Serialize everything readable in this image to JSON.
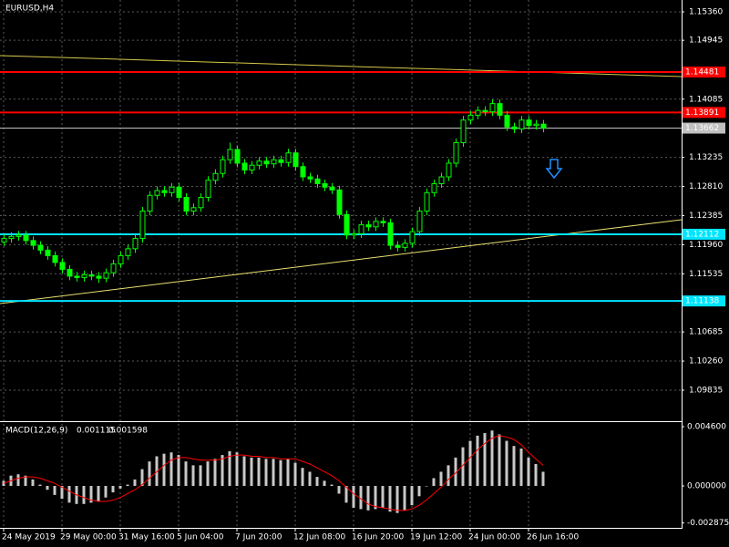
{
  "chart_data": {
    "type": "candlestick",
    "title": "EURUSD,H4",
    "categories": [
      "24 May 2019",
      null,
      null,
      null,
      null,
      null,
      null,
      null,
      "29 May 00:00",
      null,
      null,
      null,
      null,
      null,
      null,
      null,
      "31 May 16:00",
      null,
      null,
      null,
      null,
      null,
      null,
      null,
      "5 Jun 04:00",
      null,
      null,
      null,
      null,
      null,
      null,
      null,
      "7 Jun 20:00",
      null,
      null,
      null,
      null,
      null,
      null,
      null,
      "12 Jun 08:00",
      null,
      null,
      null,
      null,
      null,
      null,
      null,
      "16 Jun 20:00",
      null,
      null,
      null,
      null,
      null,
      null,
      null,
      "19 Jun 12:00",
      null,
      null,
      null,
      null,
      null,
      null,
      null,
      "24 Jun 00:00",
      null,
      null,
      null,
      null,
      null,
      null,
      null,
      "26 Jun 16:00",
      null,
      null
    ],
    "open": [
      1.12,
      1.1205,
      1.1208,
      1.121,
      1.1202,
      1.1195,
      1.1188,
      1.118,
      1.117,
      1.116,
      1.115,
      1.1148,
      1.1152,
      1.115,
      1.1147,
      1.1155,
      1.1168,
      1.118,
      1.119,
      1.1205,
      1.1245,
      1.1268,
      1.1275,
      1.1272,
      1.128,
      1.1265,
      1.1245,
      1.125,
      1.1265,
      1.129,
      1.13,
      1.132,
      1.1335,
      1.1315,
      1.1305,
      1.1312,
      1.1318,
      1.1314,
      1.132,
      1.1316,
      1.133,
      1.131,
      1.1295,
      1.1292,
      1.1285,
      1.128,
      1.1276,
      1.124,
      1.121,
      1.1212,
      1.1225,
      1.1222,
      1.123,
      1.1228,
      1.1195,
      1.1192,
      1.1198,
      1.1215,
      1.1245,
      1.1272,
      1.1285,
      1.1295,
      1.1315,
      1.1345,
      1.1378,
      1.1385,
      1.1392,
      1.139,
      1.1402,
      1.1385,
      1.1368,
      1.1365,
      1.1378,
      1.137,
      1.1372
    ],
    "high": [
      1.1211,
      1.1214,
      1.1216,
      1.1216,
      1.1208,
      1.1201,
      1.1194,
      1.1186,
      1.1176,
      1.1166,
      1.1156,
      1.1158,
      1.1158,
      1.1156,
      1.1161,
      1.1174,
      1.1186,
      1.1196,
      1.1211,
      1.1251,
      1.1274,
      1.1281,
      1.1281,
      1.1286,
      1.1286,
      1.1271,
      1.1256,
      1.1271,
      1.1296,
      1.1306,
      1.1326,
      1.1345,
      1.1341,
      1.1321,
      1.1318,
      1.1324,
      1.1324,
      1.1326,
      1.1326,
      1.1336,
      1.1336,
      1.1316,
      1.1301,
      1.1298,
      1.1291,
      1.1286,
      1.1282,
      1.1246,
      1.1218,
      1.1231,
      1.1231,
      1.1236,
      1.1236,
      1.1234,
      1.1201,
      1.1204,
      1.1221,
      1.1251,
      1.1278,
      1.1291,
      1.1301,
      1.1321,
      1.1351,
      1.1384,
      1.1391,
      1.1398,
      1.1398,
      1.1408,
      1.1408,
      1.1391,
      1.1374,
      1.1384,
      1.1384,
      1.1378,
      1.1378
    ],
    "low": [
      1.1194,
      1.1199,
      1.1202,
      1.1196,
      1.1189,
      1.1182,
      1.1174,
      1.1164,
      1.1154,
      1.1144,
      1.1142,
      1.1142,
      1.1144,
      1.114,
      1.1141,
      1.1149,
      1.1162,
      1.1174,
      1.1184,
      1.1199,
      1.1239,
      1.1262,
      1.1266,
      1.1266,
      1.1259,
      1.1239,
      1.1239,
      1.1244,
      1.1259,
      1.1284,
      1.1294,
      1.1314,
      1.1309,
      1.1299,
      1.1299,
      1.1306,
      1.1308,
      1.1308,
      1.131,
      1.131,
      1.1304,
      1.1289,
      1.1286,
      1.1279,
      1.1274,
      1.127,
      1.1234,
      1.1204,
      1.1204,
      1.1206,
      1.1216,
      1.1216,
      1.1222,
      1.1189,
      1.1186,
      1.1186,
      1.1192,
      1.1209,
      1.1239,
      1.1266,
      1.1279,
      1.1289,
      1.1309,
      1.1339,
      1.1372,
      1.1379,
      1.1384,
      1.1384,
      1.1379,
      1.1362,
      1.1359,
      1.1359,
      1.1364,
      1.1364,
      1.136
    ],
    "close": [
      1.1205,
      1.1208,
      1.121,
      1.1202,
      1.1195,
      1.1188,
      1.118,
      1.117,
      1.116,
      1.115,
      1.1148,
      1.1152,
      1.115,
      1.1147,
      1.1155,
      1.1168,
      1.118,
      1.119,
      1.1205,
      1.1245,
      1.1268,
      1.1275,
      1.1272,
      1.128,
      1.1265,
      1.1245,
      1.125,
      1.1265,
      1.129,
      1.13,
      1.132,
      1.1335,
      1.1315,
      1.1305,
      1.1312,
      1.1318,
      1.1314,
      1.132,
      1.1316,
      1.133,
      1.131,
      1.1295,
      1.1292,
      1.1285,
      1.128,
      1.1276,
      1.124,
      1.121,
      1.1212,
      1.1225,
      1.1222,
      1.123,
      1.1228,
      1.1195,
      1.1192,
      1.1198,
      1.1215,
      1.1245,
      1.1272,
      1.1285,
      1.1295,
      1.1315,
      1.1345,
      1.1378,
      1.1385,
      1.1392,
      1.139,
      1.1402,
      1.1385,
      1.1368,
      1.1365,
      1.1378,
      1.137,
      1.1372,
      1.1366
    ],
    "color": "#00ff00",
    "ylim": [
      1.09382,
      1.15533
    ],
    "yticks": [
      {
        "value": 1.1536,
        "label": "1.15360"
      },
      1.14945,
      1.14085,
      1.13235,
      {
        "value": 1.1281,
        "label": "1.12810"
      },
      1.12385,
      {
        "value": 1.1196,
        "label": "1.11960"
      },
      1.11535,
      1.10685,
      {
        "value": 1.1026,
        "label": "1.10260"
      },
      1.09835
    ],
    "grid": true,
    "levels": [
      {
        "value": 1.14481,
        "color": "#ff0000"
      },
      {
        "value": 1.13891,
        "color": "#ff0000"
      },
      {
        "value": 1.13662,
        "color": "#c0c0c0"
      },
      {
        "value": 1.12112,
        "color": "#00e5ff"
      },
      {
        "value": 1.11138,
        "color": "#00e5ff"
      }
    ],
    "trendlines": [
      {
        "color": "#d6c84a",
        "values": [
          1.14721,
          1.14415
        ]
      },
      {
        "color": "#e8e070",
        "values": [
          1.11099,
          1.12324
        ]
      }
    ],
    "indicator": {
      "type": "bar",
      "title": "MACD(12,26,9)",
      "last_values": [
        0.001115,
        0.001598
      ],
      "color": "#c8c8c8",
      "values": [
        0.0004,
        0.0008,
        0.0009,
        0.0008,
        0.0005,
        0.0001,
        -0.0003,
        -0.0007,
        -0.001,
        -0.0013,
        -0.0014,
        -0.0014,
        -0.0013,
        -0.0012,
        -0.0009,
        -0.0005,
        -0.0002,
        0.0001,
        0.0005,
        0.0013,
        0.0019,
        0.0023,
        0.0025,
        0.0026,
        0.0024,
        0.0019,
        0.0016,
        0.0016,
        0.0019,
        0.0021,
        0.0024,
        0.0027,
        0.0026,
        0.0023,
        0.0022,
        0.0022,
        0.0021,
        0.0021,
        0.002,
        0.0021,
        0.0018,
        0.0014,
        0.0011,
        0.0007,
        0.0004,
        0.0001,
        -0.0006,
        -0.0013,
        -0.0017,
        -0.0018,
        -0.0019,
        -0.0018,
        -0.0017,
        -0.002,
        -0.0021,
        -0.0019,
        -0.0015,
        -0.0008,
        0.0,
        0.0006,
        0.0011,
        0.0016,
        0.0022,
        0.003,
        0.0035,
        0.0039,
        0.0041,
        0.0043,
        0.004,
        0.0035,
        0.0031,
        0.0029,
        0.0022,
        0.0017,
        0.0011
      ],
      "signal": {
        "color": "#ff0000",
        "values": [
          0.0002,
          0.0004,
          0.0006,
          0.0007,
          0.0007,
          0.0006,
          0.0004,
          0.0002,
          -0.0001,
          -0.0004,
          -0.0007,
          -0.0009,
          -0.0011,
          -0.0012,
          -0.0012,
          -0.0011,
          -0.0009,
          -0.0006,
          -0.0003,
          0.0001,
          0.0006,
          0.0011,
          0.0016,
          0.002,
          0.0022,
          0.0022,
          0.0021,
          0.002,
          0.002,
          0.002,
          0.0021,
          0.0023,
          0.0024,
          0.0024,
          0.0023,
          0.0023,
          0.0022,
          0.0022,
          0.0021,
          0.0021,
          0.0021,
          0.0019,
          0.0017,
          0.0014,
          0.0011,
          0.0008,
          0.0004,
          -0.0001,
          -0.0006,
          -0.001,
          -0.0014,
          -0.0016,
          -0.0017,
          -0.0018,
          -0.0019,
          -0.0019,
          -0.0018,
          -0.0015,
          -0.0011,
          -0.0006,
          -0.0001,
          0.0005,
          0.001,
          0.0016,
          0.0022,
          0.0028,
          0.0033,
          0.0037,
          0.0039,
          0.0038,
          0.0036,
          0.0032,
          0.0026,
          0.0021,
          0.0016
        ]
      },
      "ylim": [
        -0.003326,
        0.004883
      ],
      "yticks": [
        {
          "value": 0.0046,
          "label": "0.004600"
        },
        {
          "value": 0,
          "label": "0.000000"
        },
        {
          "value": -0.002875,
          "label": "-0.002875"
        }
      ]
    }
  }
}
